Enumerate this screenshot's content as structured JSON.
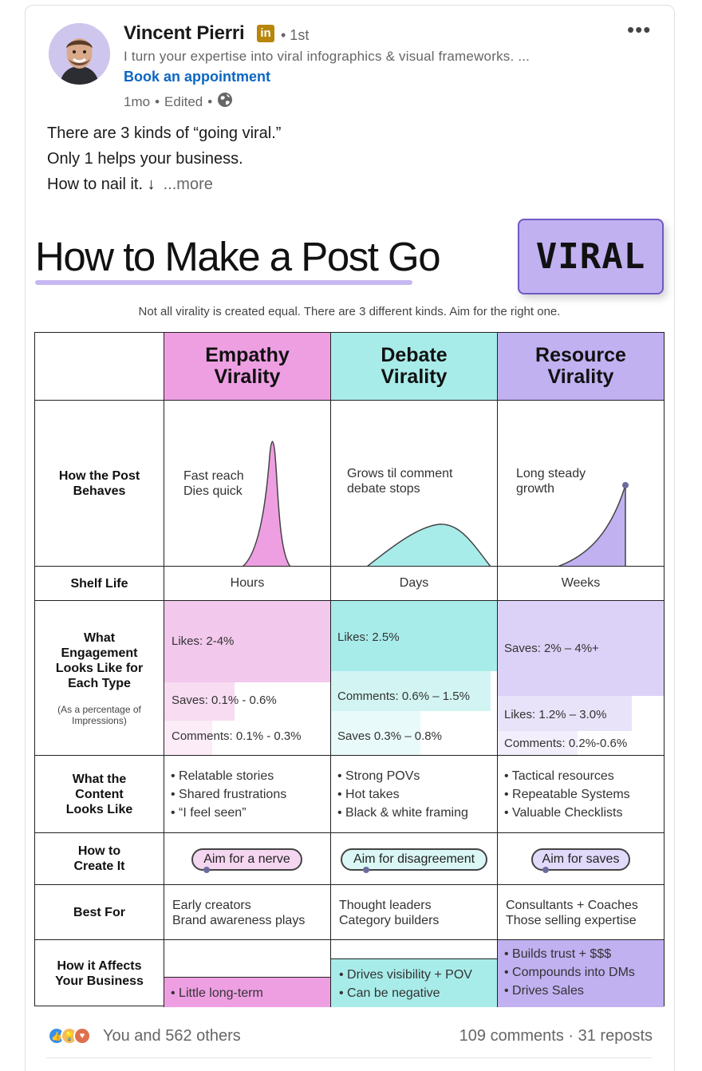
{
  "post": {
    "author": {
      "name": "Vincent Pierri",
      "badge": "in",
      "degree": "• 1st",
      "headline": "I turn your expertise into viral infographics & visual frameworks. ...",
      "cta": "Book an appointment",
      "time": "1mo",
      "edited": "Edited"
    },
    "more_menu": "•••",
    "text": {
      "line1": "There are 3 kinds of “going viral.”",
      "line2": "Only 1 helps your business.",
      "line3": "How to nail it. ↓",
      "more": "...more"
    }
  },
  "infographic": {
    "title": "How to Make a Post Go",
    "title_highlight": "VIRAL",
    "subtitle": "Not all virality is created equal. There are 3 different kinds. Aim for the right one.",
    "colors": {
      "empathy": "#ee9fe2",
      "debate": "#a8ecea",
      "resource": "#c1b1f1"
    },
    "columns": [
      {
        "line1": "Empathy",
        "line2": "Virality"
      },
      {
        "line1": "Debate",
        "line2": "Virality"
      },
      {
        "line1": "Resource",
        "line2": "Virality"
      }
    ],
    "rows": {
      "behaves": {
        "label": "How the Post Behaves",
        "values": [
          "Fast reach\nDies quick",
          "Grows til comment\ndebate stops",
          "Long steady\ngrowth"
        ]
      },
      "shelf": {
        "label": "Shelf Life",
        "values": [
          "Hours",
          "Days",
          "Weeks"
        ]
      },
      "engagement": {
        "label": "What Engagement Looks Like for Each Type",
        "note": "(As a percentage of Impressions)",
        "empathy": [
          "Likes: 2-4%",
          "Saves: 0.1% - 0.6%",
          "Comments: 0.1% - 0.3%"
        ],
        "debate": [
          "Likes: 2.5%",
          "Comments: 0.6% – 1.5%",
          "Saves 0.3% – 0.8%"
        ],
        "resource": [
          "Saves: 2% – 4%+",
          "Likes: 1.2% – 3.0%",
          "Comments: 0.2%-0.6%"
        ]
      },
      "content": {
        "label": "What the Content Looks Like",
        "values": [
          [
            "• Relatable stories",
            "• Shared frustrations",
            "• “I feel seen”"
          ],
          [
            "• Strong POVs",
            "• Hot takes",
            "• Black & white framing"
          ],
          [
            "• Tactical resources",
            "• Repeatable Systems",
            "• Valuable Checklists"
          ]
        ]
      },
      "create": {
        "label": "How to Create It",
        "values": [
          "Aim for a nerve",
          "Aim for disagreement",
          "Aim for saves"
        ]
      },
      "best": {
        "label": "Best For",
        "values": [
          [
            "Early creators",
            "Brand awareness plays"
          ],
          [
            "Thought leaders",
            "Category builders"
          ],
          [
            "Consultants + Coaches",
            "Those selling expertise"
          ]
        ]
      },
      "affects": {
        "label": "How it Affects Your Business",
        "values": [
          [
            "• Little long-term"
          ],
          [
            "• Drives visibility + POV",
            "• Can be negative"
          ],
          [
            "• Builds trust + $$$",
            "• Compounds into DMs",
            "• Drives Sales"
          ]
        ]
      }
    }
  },
  "social": {
    "reactions_text": "You and 562 others",
    "comments": "109 comments",
    "separator": " · ",
    "reposts": "31 reposts"
  }
}
